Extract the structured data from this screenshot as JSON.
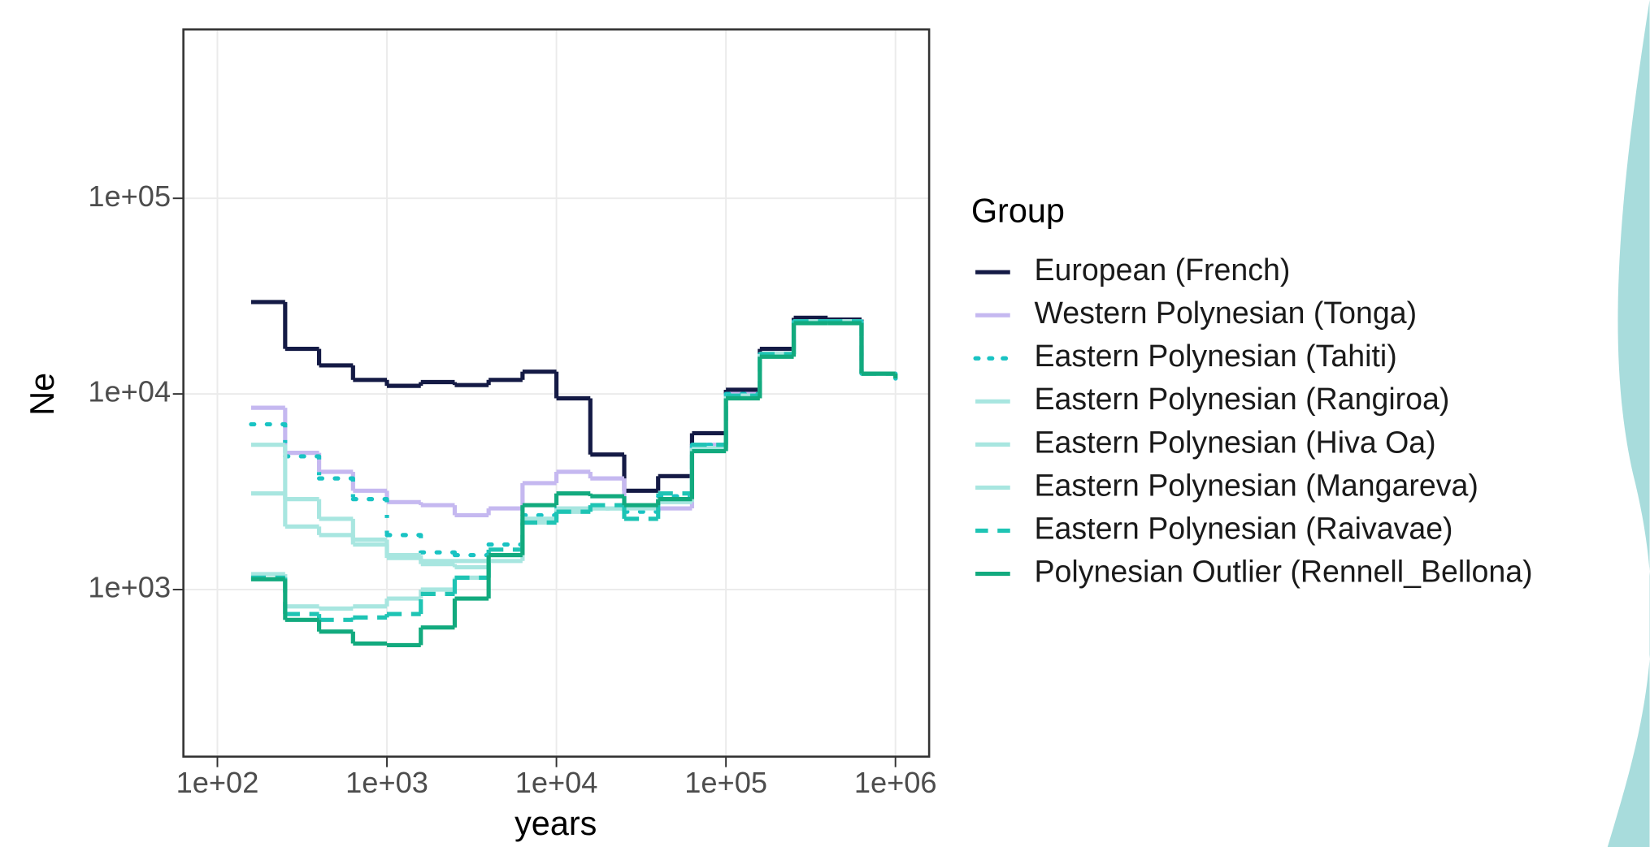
{
  "chart_data": {
    "type": "step",
    "x_label": "years",
    "y_label": "Ne",
    "legend_title": "Group",
    "log_x": true,
    "log_y": true,
    "grid": true,
    "legend": "right",
    "xlim": [
      63,
      1580000
    ],
    "ylim": [
      140,
      730000
    ],
    "xticks": [
      {
        "value": 100,
        "label": "1e+02"
      },
      {
        "value": 1000,
        "label": "1e+03"
      },
      {
        "value": 10000,
        "label": "1e+04"
      },
      {
        "value": 100000,
        "label": "1e+05"
      },
      {
        "value": 1000000,
        "label": "1e+06"
      }
    ],
    "yticks": [
      {
        "value": 1000,
        "label": "1e+03"
      },
      {
        "value": 10000,
        "label": "1e+04"
      },
      {
        "value": 100000,
        "label": "1e+05"
      }
    ],
    "x": [
      158,
      251,
      398,
      631,
      1000,
      1585,
      2512,
      3981,
      6310,
      10000,
      15849,
      25119,
      39811,
      63096,
      100000,
      158489,
      251189,
      398107,
      630957,
      1000000
    ],
    "series": [
      {
        "name": "European (French)",
        "color": "#141a45",
        "linestyle": "solid",
        "values": [
          29500,
          17000,
          14000,
          11800,
          11000,
          11500,
          11100,
          11800,
          13000,
          9500,
          4900,
          3200,
          3800,
          6300,
          10500,
          17000,
          24500,
          24000,
          12700,
          12000
        ]
      },
      {
        "name": "Western Polynesian (Tonga)",
        "color": "#c5b8f0",
        "linestyle": "solid",
        "values": [
          8500,
          5000,
          4000,
          3200,
          2800,
          2700,
          2400,
          2600,
          3500,
          4000,
          3700,
          2700,
          2600,
          5500,
          10000,
          16000,
          23500,
          23500,
          12700,
          12000
        ]
      },
      {
        "name": "Eastern Polynesian (Tahiti)",
        "color": "#19c3c3",
        "linestyle": "dotted",
        "values": [
          7000,
          4800,
          3700,
          2900,
          1900,
          1550,
          1500,
          1700,
          2400,
          2600,
          2600,
          2500,
          3000,
          5500,
          10000,
          16000,
          23500,
          23500,
          12700,
          12000
        ]
      },
      {
        "name": "Eastern Polynesian (Rangiroa)",
        "color": "#a8e6e0",
        "linestyle": "solid",
        "values": [
          5500,
          2900,
          2300,
          1800,
          1500,
          1400,
          1400,
          1500,
          2300,
          2500,
          2600,
          2700,
          2800,
          5300,
          9800,
          16000,
          23500,
          23500,
          12700,
          12000
        ]
      },
      {
        "name": "Eastern Polynesian (Hiva Oa)",
        "color": "#a8e6e0",
        "linestyle": "solid",
        "values": [
          3100,
          2100,
          1900,
          1700,
          1450,
          1350,
          1300,
          1400,
          2300,
          2600,
          2600,
          2600,
          2900,
          5300,
          9800,
          16000,
          23500,
          23500,
          12700,
          12000
        ]
      },
      {
        "name": "Eastern Polynesian (Mangareva)",
        "color": "#a8e6e0",
        "linestyle": "solid",
        "values": [
          1200,
          820,
          800,
          820,
          900,
          1000,
          1150,
          1500,
          2200,
          2500,
          2600,
          2700,
          2900,
          5300,
          9800,
          16000,
          23500,
          23500,
          12700,
          12000
        ]
      },
      {
        "name": "Eastern Polynesian (Raivavae)",
        "color": "#1ec4b4",
        "linestyle": "dashed",
        "values": [
          1150,
          750,
          700,
          720,
          750,
          950,
          1150,
          1600,
          2200,
          2500,
          2700,
          2300,
          3100,
          5500,
          9800,
          16000,
          23500,
          23500,
          12700,
          12000
        ]
      },
      {
        "name": "Polynesian Outlier (Rennell_Bellona)",
        "color": "#12aa7e",
        "linestyle": "solid",
        "values": [
          1130,
          700,
          610,
          530,
          520,
          640,
          900,
          1500,
          2700,
          3100,
          3000,
          2700,
          2900,
          5100,
          9500,
          15500,
          23000,
          23000,
          12700,
          12000
        ]
      }
    ]
  }
}
